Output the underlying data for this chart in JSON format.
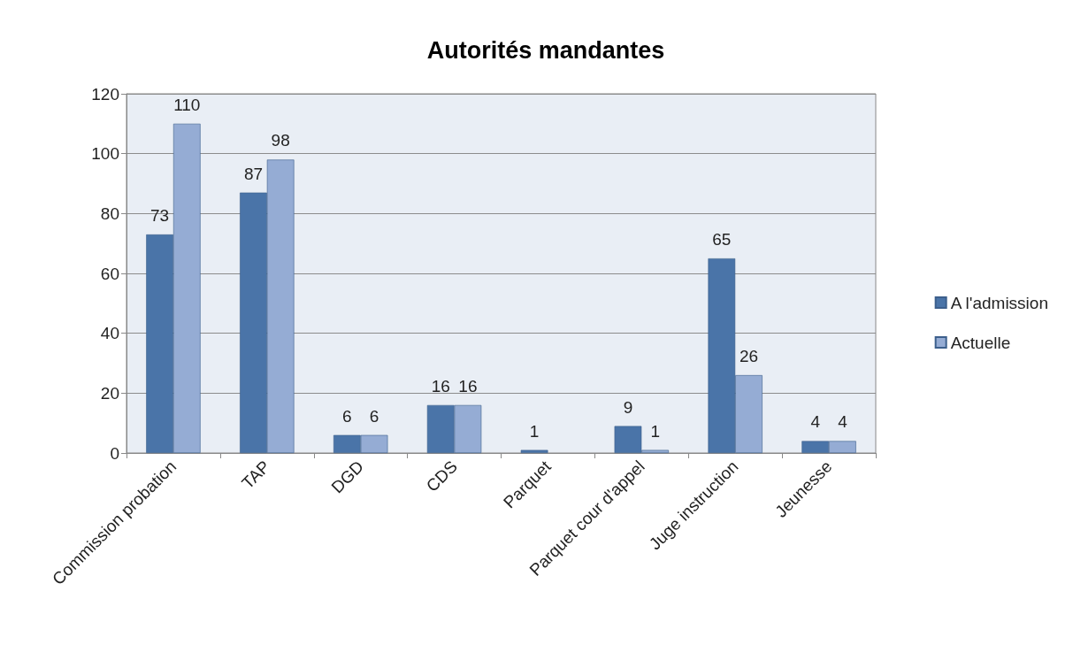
{
  "chart_data": {
    "type": "bar",
    "title": "Autorités mandantes",
    "categories": [
      "Commission probation",
      "TAP",
      "DGD",
      "CDS",
      "Parquet",
      "Parquet cour d'appel",
      "Juge instruction",
      "Jeunesse"
    ],
    "series": [
      {
        "name": "A l'admission",
        "color": "#4a74a8",
        "values": [
          73,
          87,
          6,
          16,
          1,
          9,
          65,
          4
        ]
      },
      {
        "name": "Actuelle",
        "color": "#95acd4",
        "values": [
          110,
          98,
          6,
          16,
          null,
          1,
          26,
          4
        ]
      }
    ],
    "ylim": [
      0,
      120
    ],
    "yticks": [
      0,
      20,
      40,
      60,
      80,
      100,
      120
    ],
    "grid": "y",
    "legend": "right",
    "data_labels": true
  }
}
